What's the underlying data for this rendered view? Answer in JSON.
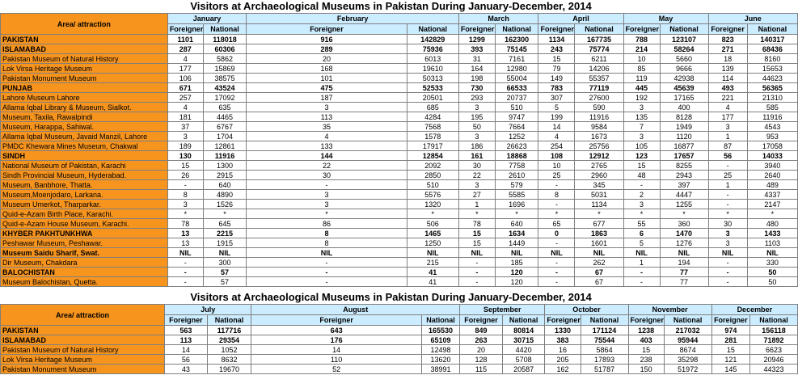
{
  "tables": [
    {
      "title": "Visitors at Archaeological Museums in Pakistan During January-December, 2014",
      "area_header": "Area/ attraction",
      "months": [
        "January",
        "February",
        "March",
        "April",
        "May",
        "June"
      ],
      "sub_headers": [
        "Foreigner",
        "National"
      ],
      "rows": [
        {
          "name": "PAKISTAN",
          "bold": true,
          "values": [
            "1101",
            "118018",
            "916",
            "142829",
            "1299",
            "162300",
            "1134",
            "167735",
            "788",
            "123107",
            "823",
            "140317"
          ]
        },
        {
          "name": "ISLAMABAD",
          "bold": true,
          "values": [
            "287",
            "60306",
            "289",
            "75936",
            "393",
            "75145",
            "243",
            "75774",
            "214",
            "58264",
            "271",
            "68436"
          ]
        },
        {
          "name": "Pakistan Museum of Natural History",
          "bold": false,
          "values": [
            "4",
            "5862",
            "20",
            "6013",
            "31",
            "7161",
            "15",
            "6211",
            "10",
            "5660",
            "18",
            "8160"
          ]
        },
        {
          "name": "Lok Virsa Heritage Museum",
          "bold": false,
          "values": [
            "177",
            "15869",
            "168",
            "19610",
            "164",
            "12980",
            "79",
            "14206",
            "85",
            "9666",
            "139",
            "15653"
          ]
        },
        {
          "name": "Pakistan Monument Museum",
          "bold": false,
          "values": [
            "106",
            "38575",
            "101",
            "50313",
            "198",
            "55004",
            "149",
            "55357",
            "119",
            "42938",
            "114",
            "44623"
          ]
        },
        {
          "name": "PUNJAB",
          "bold": true,
          "values": [
            "671",
            "43524",
            "475",
            "52533",
            "730",
            "66533",
            "783",
            "77119",
            "445",
            "45639",
            "493",
            "56365"
          ]
        },
        {
          "name": "Lahore Museum Lahore",
          "bold": false,
          "values": [
            "257",
            "17092",
            "187",
            "20501",
            "293",
            "20737",
            "307",
            "27600",
            "192",
            "17165",
            "221",
            "21310"
          ]
        },
        {
          "name": "Allama Iqbal Library & Museum, Sialkot.",
          "bold": false,
          "values": [
            "4",
            "635",
            "3",
            "685",
            "3",
            "510",
            "5",
            "590",
            "3",
            "400",
            "4",
            "585"
          ]
        },
        {
          "name": "Museum, Taxila, Rawalpindi",
          "bold": false,
          "values": [
            "181",
            "4465",
            "113",
            "4284",
            "195",
            "9747",
            "199",
            "11916",
            "135",
            "8128",
            "177",
            "11916"
          ]
        },
        {
          "name": "Museum, Harappa, Sahiwal.",
          "bold": false,
          "values": [
            "37",
            "6767",
            "35",
            "7568",
            "50",
            "7664",
            "14",
            "9584",
            "7",
            "1949",
            "3",
            "4543"
          ]
        },
        {
          "name": "Allama Iqbal Museum, Javaid Manzil, Lahore",
          "bold": false,
          "values": [
            "3",
            "1704",
            "4",
            "1578",
            "3",
            "1252",
            "4",
            "1673",
            "3",
            "1120",
            "1",
            "953"
          ]
        },
        {
          "name": "PMDC Khewara Mines Museum, Chakwal",
          "bold": false,
          "values": [
            "189",
            "12861",
            "133",
            "17917",
            "186",
            "26623",
            "254",
            "25756",
            "105",
            "16877",
            "87",
            "17058"
          ]
        },
        {
          "name": "SINDH",
          "bold": true,
          "values": [
            "130",
            "11916",
            "144",
            "12854",
            "161",
            "18868",
            "108",
            "12912",
            "123",
            "17657",
            "56",
            "14033"
          ]
        },
        {
          "name": "National Museum of Pakistan, Karachi",
          "bold": false,
          "values": [
            "15",
            "1300",
            "22",
            "2092",
            "30",
            "7758",
            "10",
            "2765",
            "15",
            "8255",
            "-",
            "3940"
          ]
        },
        {
          "name": "Sindh Provincial Museum, Hyderabad.",
          "bold": false,
          "values": [
            "26",
            "2915",
            "30",
            "2850",
            "22",
            "2610",
            "25",
            "2960",
            "48",
            "2943",
            "25",
            "2640"
          ]
        },
        {
          "name": "Museum, Banbhore, Thatta.",
          "bold": false,
          "values": [
            "-",
            "640",
            "-",
            "510",
            "3",
            "579",
            "-",
            "345",
            "-",
            "397",
            "1",
            "489"
          ]
        },
        {
          "name": "Museum,Moenjodaro, Larkana.",
          "bold": false,
          "values": [
            "8",
            "4890",
            "3",
            "5576",
            "27",
            "5585",
            "8",
            "5031",
            "2",
            "4447",
            "-",
            "4337"
          ]
        },
        {
          "name": "Museum Umerkot,  Tharparkar.",
          "bold": false,
          "values": [
            "3",
            "1526",
            "3",
            "1320",
            "1",
            "1696",
            "-",
            "1134",
            "3",
            "1255",
            "-",
            "2147"
          ]
        },
        {
          "name": "Quid-e-Azam Birth Place, Karachi.",
          "bold": false,
          "values": [
            "*",
            "*",
            "*",
            "*",
            "*",
            "*",
            "*",
            "*",
            "*",
            "*",
            "*",
            "*"
          ]
        },
        {
          "name": "Quid-e-Azam House Museum, Karachi.",
          "bold": false,
          "values": [
            "78",
            "645",
            "86",
            "506",
            "78",
            "640",
            "65",
            "677",
            "55",
            "360",
            "30",
            "480"
          ]
        },
        {
          "name": "KHYBER PAKHTUNKHWA",
          "bold": true,
          "values": [
            "13",
            "2215",
            "8",
            "1465",
            "15",
            "1634",
            "0",
            "1863",
            "6",
            "1470",
            "3",
            "1433"
          ]
        },
        {
          "name": "Peshawar Museum, Peshawar.",
          "bold": false,
          "values": [
            "13",
            "1915",
            "8",
            "1250",
            "15",
            "1449",
            "-",
            "1601",
            "5",
            "1276",
            "3",
            "1103"
          ]
        },
        {
          "name": "Museum Saidu Sharif, Swat.",
          "bold": true,
          "values": [
            "NIL",
            "NIL",
            "NIL",
            "NIL",
            "NIL",
            "NIL",
            "NIL",
            "NIL",
            "NIL",
            "NIL",
            "NIL",
            "NIL"
          ]
        },
        {
          "name": "Dir Museum,  Chakdara",
          "bold": false,
          "values": [
            "-",
            "300",
            "-",
            "215",
            "-",
            "185",
            "-",
            "262",
            "1",
            "194",
            "-",
            "330"
          ]
        },
        {
          "name": "BALOCHISTAN",
          "bold": true,
          "values": [
            "-",
            "57",
            "-",
            "41",
            "-",
            "120",
            "-",
            "67",
            "-",
            "77",
            "-",
            "50"
          ]
        },
        {
          "name": "Museum Balochistan, Quetta.",
          "bold": false,
          "values": [
            "-",
            "57",
            "-",
            "41",
            "-",
            "120",
            "-",
            "67",
            "-",
            "77",
            "-",
            "50"
          ]
        }
      ]
    },
    {
      "title": "Visitors at Archaeological Museums in Pakistan During January-December, 2014",
      "area_header": "Area/ attraction",
      "months": [
        "July",
        "August",
        "September",
        "October",
        "November",
        "December"
      ],
      "sub_headers": [
        "Foreigner",
        "National"
      ],
      "rows": [
        {
          "name": "PAKISTAN",
          "bold": true,
          "values": [
            "563",
            "117716",
            "643",
            "165530",
            "849",
            "80814",
            "1330",
            "171124",
            "1238",
            "217032",
            "974",
            "156118"
          ]
        },
        {
          "name": "ISLAMABAD",
          "bold": true,
          "values": [
            "113",
            "29354",
            "176",
            "65109",
            "263",
            "30715",
            "383",
            "75544",
            "403",
            "95944",
            "281",
            "71892"
          ]
        },
        {
          "name": "Pakistan Museum of Natural History",
          "bold": false,
          "values": [
            "14",
            "1052",
            "14",
            "12498",
            "20",
            "4420",
            "16",
            "5864",
            "15",
            "8674",
            "15",
            "6623"
          ]
        },
        {
          "name": "Lok Virsa Heritage Museum",
          "bold": false,
          "values": [
            "56",
            "8632",
            "110",
            "13620",
            "128",
            "5708",
            "205",
            "17893",
            "238",
            "35298",
            "121",
            "20946"
          ]
        },
        {
          "name": "Pakistan Monument Museum",
          "bold": false,
          "values": [
            "43",
            "19670",
            "52",
            "38991",
            "115",
            "20587",
            "162",
            "51787",
            "150",
            "51972",
            "145",
            "44323"
          ]
        }
      ]
    }
  ]
}
